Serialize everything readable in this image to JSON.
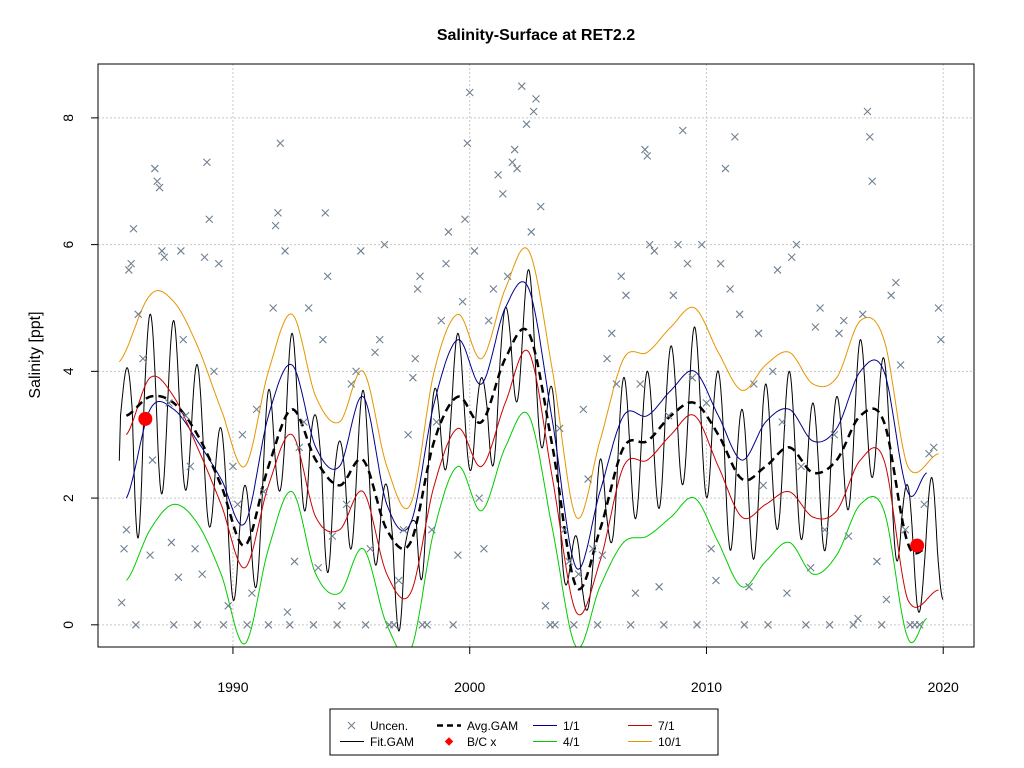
{
  "chart_data": {
    "type": "scatter",
    "title": "Salinity-Surface at RET2.2",
    "xlabel": "",
    "ylabel": "Salinity [ppt]",
    "xlim": [
      1984.3,
      2021.3
    ],
    "ylim": [
      -0.35,
      8.85
    ],
    "x_ticks": [
      1990,
      2000,
      2010,
      2020
    ],
    "y_ticks": [
      0,
      2,
      4,
      6,
      8
    ],
    "grid": true,
    "legend_position": "bottom-center",
    "colors": {
      "uncen": "#708090",
      "fit": "#000000",
      "avg": "#000000",
      "bc": "#ff0000",
      "q1": "#00008b",
      "q4": "#00cc00",
      "q7": "#cc0000",
      "q10": "#e69500"
    },
    "legend": [
      {
        "key": "uncen",
        "label": "Uncen."
      },
      {
        "key": "fit",
        "label": "Fit.GAM"
      },
      {
        "key": "avg",
        "label": "Avg.GAM"
      },
      {
        "key": "bc",
        "label": "B/C x"
      },
      {
        "key": "q1",
        "label": "1/1"
      },
      {
        "key": "q4",
        "label": "4/1"
      },
      {
        "key": "q7",
        "label": "7/1"
      },
      {
        "key": "q10",
        "label": "10/1"
      }
    ],
    "bc_points": [
      {
        "x": 1986.3,
        "y": 3.25
      },
      {
        "x": 2018.9,
        "y": 1.25
      }
    ],
    "series": [
      {
        "key": "avg",
        "x": [
          1985.5,
          1986.5,
          1987.5,
          1988.5,
          1989.5,
          1990.5,
          1991.5,
          1992.5,
          1993.5,
          1994.5,
          1995.5,
          1996.5,
          1997.5,
          1998.5,
          1999.5,
          2000.5,
          2001.5,
          2002.5,
          2003.5,
          2004.5,
          2005.5,
          2006.5,
          2007.5,
          2008.5,
          2009.5,
          2010.5,
          2011.5,
          2012.5,
          2013.5,
          2014.5,
          2015.5,
          2016.5,
          2017.5,
          2018.5,
          2019.3
        ],
        "y": [
          3.3,
          3.6,
          3.5,
          3.0,
          2.2,
          1.25,
          2.5,
          3.4,
          2.6,
          2.2,
          2.6,
          1.5,
          1.3,
          2.9,
          3.6,
          3.2,
          4.2,
          4.6,
          2.8,
          0.6,
          1.5,
          2.8,
          2.9,
          3.3,
          3.5,
          3.0,
          2.3,
          2.5,
          2.8,
          2.4,
          2.6,
          3.3,
          3.2,
          1.3,
          1.2
        ]
      },
      {
        "key": "q1",
        "x": [
          1985.5,
          1986.5,
          1987.5,
          1988.5,
          1989.5,
          1990.5,
          1991.5,
          1992.5,
          1993.5,
          1994.5,
          1995.5,
          1996.5,
          1997.5,
          1998.5,
          1999.5,
          2000.5,
          2001.5,
          2002.5,
          2003.5,
          2004.5,
          2005.5,
          2006.5,
          2007.5,
          2008.5,
          2009.5,
          2010.5,
          2011.5,
          2012.5,
          2013.5,
          2014.5,
          2015.5,
          2016.5,
          2017.5,
          2018.5,
          2019.3
        ],
        "y": [
          2.0,
          3.4,
          3.4,
          2.9,
          2.3,
          1.6,
          3.3,
          4.1,
          2.8,
          2.5,
          3.6,
          1.9,
          1.6,
          3.5,
          4.5,
          3.8,
          5.0,
          5.3,
          3.2,
          0.9,
          2.1,
          3.3,
          3.3,
          3.7,
          4.0,
          3.3,
          2.6,
          3.2,
          3.4,
          2.9,
          3.1,
          4.0,
          4.0,
          2.1,
          2.4
        ]
      },
      {
        "key": "q4",
        "x": [
          1985.5,
          1986.5,
          1987.5,
          1988.5,
          1989.5,
          1990.5,
          1991.5,
          1992.5,
          1993.5,
          1994.5,
          1995.5,
          1996.5,
          1997.5,
          1998.5,
          1999.5,
          2000.5,
          2001.5,
          2002.5,
          2003.5,
          2004.5,
          2005.5,
          2006.5,
          2007.5,
          2008.5,
          2009.5,
          2010.5,
          2011.5,
          2012.5,
          2013.5,
          2014.5,
          2015.5,
          2016.5,
          2017.5,
          2018.5,
          2019.3
        ],
        "y": [
          0.7,
          1.5,
          1.9,
          1.6,
          0.8,
          -0.3,
          1.2,
          2.1,
          0.8,
          0.5,
          1.2,
          0.0,
          -0.4,
          1.5,
          2.5,
          1.8,
          2.8,
          3.3,
          1.5,
          -0.35,
          0.6,
          1.3,
          1.4,
          1.7,
          2.0,
          1.3,
          0.6,
          1.0,
          1.3,
          0.8,
          1.1,
          1.9,
          1.8,
          -0.2,
          0.1
        ]
      },
      {
        "key": "q7",
        "x": [
          1985.5,
          1986.5,
          1987.5,
          1988.5,
          1989.5,
          1990.5,
          1991.5,
          1992.5,
          1993.5,
          1994.5,
          1995.5,
          1996.5,
          1997.5,
          1998.5,
          1999.5,
          2000.5,
          2001.5,
          2002.5,
          2003.5,
          2004.5,
          2005.5,
          2006.5,
          2007.5,
          2008.5,
          2009.5,
          2010.5,
          2011.5,
          2012.5,
          2013.5,
          2014.5,
          2015.5,
          2016.5,
          2017.5,
          2018.5,
          2019.8
        ],
        "y": [
          3.0,
          3.9,
          3.6,
          2.8,
          1.9,
          0.9,
          2.2,
          3.0,
          1.7,
          1.5,
          2.1,
          0.8,
          0.5,
          2.2,
          3.1,
          2.5,
          3.5,
          4.3,
          2.3,
          0.2,
          1.0,
          2.5,
          2.6,
          3.0,
          3.3,
          2.5,
          1.7,
          1.9,
          2.1,
          1.7,
          1.8,
          2.6,
          2.6,
          0.4,
          0.55
        ]
      },
      {
        "key": "q10",
        "x": [
          1985.2,
          1986.5,
          1987.5,
          1988.5,
          1989.5,
          1990.5,
          1991.5,
          1992.5,
          1993.5,
          1994.5,
          1995.5,
          1996.5,
          1997.5,
          1998.5,
          1999.5,
          2000.5,
          2001.5,
          2002.5,
          2003.5,
          2004.5,
          2005.5,
          2006.5,
          2007.5,
          2008.5,
          2009.5,
          2010.5,
          2011.5,
          2012.5,
          2013.5,
          2014.5,
          2015.5,
          2016.5,
          2017.5,
          2018.5,
          2019.8
        ],
        "y": [
          4.15,
          5.2,
          5.1,
          4.4,
          3.4,
          2.5,
          4.0,
          4.9,
          3.6,
          3.2,
          4.0,
          2.5,
          1.9,
          4.0,
          4.9,
          4.2,
          5.3,
          5.9,
          4.0,
          1.7,
          2.9,
          4.2,
          4.3,
          4.7,
          5.0,
          4.3,
          3.7,
          4.1,
          4.3,
          3.8,
          3.9,
          4.8,
          4.5,
          2.5,
          2.7
        ]
      }
    ],
    "fit_gam": {
      "key": "fit",
      "x_start": 1985.2,
      "x_end": 2020.0,
      "note": "seasonal oscillation between 4/1-ish lows and 10/1-ish highs around Avg.GAM"
    },
    "uncen_points": [
      [
        1985.3,
        0.35
      ],
      [
        1985.4,
        1.2
      ],
      [
        1985.5,
        1.5
      ],
      [
        1985.6,
        5.6
      ],
      [
        1985.7,
        5.7
      ],
      [
        1985.8,
        6.25
      ],
      [
        1985.9,
        0
      ],
      [
        1986.0,
        4.9
      ],
      [
        1986.2,
        4.2
      ],
      [
        1986.5,
        1.1
      ],
      [
        1986.6,
        2.6
      ],
      [
        1986.7,
        7.2
      ],
      [
        1986.8,
        7.0
      ],
      [
        1986.9,
        6.9
      ],
      [
        1987.0,
        5.9
      ],
      [
        1987.1,
        5.8
      ],
      [
        1987.3,
        3.5
      ],
      [
        1987.4,
        1.3
      ],
      [
        1987.5,
        0
      ],
      [
        1987.7,
        0.75
      ],
      [
        1987.8,
        5.9
      ],
      [
        1987.9,
        4.5
      ],
      [
        1988.0,
        3.3
      ],
      [
        1988.2,
        2.5
      ],
      [
        1988.4,
        1.2
      ],
      [
        1988.5,
        0
      ],
      [
        1988.7,
        0.8
      ],
      [
        1988.8,
        5.8
      ],
      [
        1988.9,
        7.3
      ],
      [
        1989.0,
        6.4
      ],
      [
        1989.2,
        4.0
      ],
      [
        1989.4,
        5.7
      ],
      [
        1989.6,
        0
      ],
      [
        1989.8,
        0.3
      ],
      [
        1990.0,
        2.5
      ],
      [
        1990.2,
        1.9
      ],
      [
        1990.4,
        3.0
      ],
      [
        1990.6,
        0
      ],
      [
        1990.8,
        0.5
      ],
      [
        1991.0,
        3.4
      ],
      [
        1991.3,
        2.1
      ],
      [
        1991.5,
        0
      ],
      [
        1991.7,
        5.0
      ],
      [
        1991.8,
        6.3
      ],
      [
        1991.9,
        6.5
      ],
      [
        1992.0,
        7.6
      ],
      [
        1992.2,
        5.9
      ],
      [
        1992.3,
        0.2
      ],
      [
        1992.4,
        0
      ],
      [
        1992.6,
        1.0
      ],
      [
        1992.8,
        2.8
      ],
      [
        1993.0,
        3.2
      ],
      [
        1993.2,
        5.0
      ],
      [
        1993.4,
        0
      ],
      [
        1993.6,
        0.9
      ],
      [
        1993.8,
        4.5
      ],
      [
        1993.9,
        6.5
      ],
      [
        1994.0,
        5.5
      ],
      [
        1994.2,
        1.4
      ],
      [
        1994.4,
        0
      ],
      [
        1994.6,
        0.3
      ],
      [
        1994.8,
        1.9
      ],
      [
        1995.0,
        3.8
      ],
      [
        1995.2,
        4.0
      ],
      [
        1995.4,
        5.9
      ],
      [
        1995.6,
        0
      ],
      [
        1995.8,
        1.2
      ],
      [
        1996.0,
        4.3
      ],
      [
        1996.2,
        4.5
      ],
      [
        1996.4,
        6.0
      ],
      [
        1996.6,
        0
      ],
      [
        1996.8,
        0
      ],
      [
        1997.0,
        0.7
      ],
      [
        1997.2,
        1.5
      ],
      [
        1997.4,
        3.0
      ],
      [
        1997.6,
        3.9
      ],
      [
        1997.7,
        4.2
      ],
      [
        1997.8,
        5.3
      ],
      [
        1997.9,
        5.5
      ],
      [
        1998.0,
        0
      ],
      [
        1998.2,
        0
      ],
      [
        1998.4,
        1.5
      ],
      [
        1998.6,
        3.2
      ],
      [
        1998.8,
        4.8
      ],
      [
        1999.0,
        5.7
      ],
      [
        1999.1,
        6.2
      ],
      [
        1999.3,
        0
      ],
      [
        1999.5,
        1.1
      ],
      [
        1999.7,
        5.1
      ],
      [
        1999.8,
        6.4
      ],
      [
        1999.9,
        7.6
      ],
      [
        2000.0,
        8.4
      ],
      [
        2000.2,
        5.9
      ],
      [
        2000.4,
        2.0
      ],
      [
        2000.6,
        1.2
      ],
      [
        2000.8,
        4.8
      ],
      [
        2001.0,
        5.3
      ],
      [
        2001.2,
        7.1
      ],
      [
        2001.4,
        6.8
      ],
      [
        2001.6,
        5.5
      ],
      [
        2001.8,
        7.3
      ],
      [
        2001.9,
        7.5
      ],
      [
        2002.0,
        7.2
      ],
      [
        2002.2,
        8.5
      ],
      [
        2002.4,
        7.9
      ],
      [
        2002.6,
        6.2
      ],
      [
        2002.7,
        8.1
      ],
      [
        2002.8,
        8.3
      ],
      [
        2003.0,
        6.6
      ],
      [
        2003.2,
        0.3
      ],
      [
        2003.4,
        0
      ],
      [
        2003.6,
        0
      ],
      [
        2003.8,
        3.1
      ],
      [
        2004.0,
        1.5
      ],
      [
        2004.2,
        1.0
      ],
      [
        2004.4,
        0
      ],
      [
        2004.6,
        0.8
      ],
      [
        2004.8,
        3.4
      ],
      [
        2005.0,
        2.3
      ],
      [
        2005.2,
        1.2
      ],
      [
        2005.4,
        0
      ],
      [
        2005.6,
        1.1
      ],
      [
        2005.8,
        4.2
      ],
      [
        2006.0,
        4.6
      ],
      [
        2006.2,
        3.8
      ],
      [
        2006.4,
        5.5
      ],
      [
        2006.6,
        5.2
      ],
      [
        2006.8,
        0
      ],
      [
        2007.0,
        0.5
      ],
      [
        2007.2,
        3.8
      ],
      [
        2007.4,
        7.5
      ],
      [
        2007.5,
        7.4
      ],
      [
        2007.6,
        6.0
      ],
      [
        2007.8,
        5.9
      ],
      [
        2008.0,
        0.6
      ],
      [
        2008.2,
        0
      ],
      [
        2008.4,
        3.3
      ],
      [
        2008.6,
        5.2
      ],
      [
        2008.8,
        6.0
      ],
      [
        2009.0,
        7.8
      ],
      [
        2009.2,
        5.7
      ],
      [
        2009.4,
        3.9
      ],
      [
        2009.6,
        0
      ],
      [
        2009.8,
        6.0
      ],
      [
        2010.0,
        3.5
      ],
      [
        2010.2,
        1.2
      ],
      [
        2010.4,
        0.7
      ],
      [
        2010.6,
        5.7
      ],
      [
        2010.8,
        7.2
      ],
      [
        2011.0,
        5.3
      ],
      [
        2011.2,
        7.7
      ],
      [
        2011.4,
        4.9
      ],
      [
        2011.6,
        0
      ],
      [
        2011.8,
        0.6
      ],
      [
        2012.0,
        3.8
      ],
      [
        2012.2,
        4.6
      ],
      [
        2012.4,
        2.2
      ],
      [
        2012.6,
        0
      ],
      [
        2012.8,
        4.0
      ],
      [
        2013.0,
        5.6
      ],
      [
        2013.2,
        3.2
      ],
      [
        2013.4,
        0.5
      ],
      [
        2013.6,
        5.8
      ],
      [
        2013.8,
        6.0
      ],
      [
        2014.0,
        2.5
      ],
      [
        2014.2,
        0
      ],
      [
        2014.4,
        0.9
      ],
      [
        2014.6,
        4.7
      ],
      [
        2014.8,
        5.0
      ],
      [
        2015.0,
        1.5
      ],
      [
        2015.2,
        0
      ],
      [
        2015.4,
        3.0
      ],
      [
        2015.6,
        4.6
      ],
      [
        2015.8,
        4.8
      ],
      [
        2016.0,
        1.4
      ],
      [
        2016.2,
        0
      ],
      [
        2016.4,
        0.1
      ],
      [
        2016.6,
        4.9
      ],
      [
        2016.8,
        8.1
      ],
      [
        2016.9,
        7.7
      ],
      [
        2017.0,
        7.0
      ],
      [
        2017.2,
        1.0
      ],
      [
        2017.4,
        0
      ],
      [
        2017.6,
        0.4
      ],
      [
        2017.8,
        5.2
      ],
      [
        2018.0,
        5.4
      ],
      [
        2018.2,
        4.1
      ],
      [
        2018.4,
        1.5
      ],
      [
        2018.6,
        0
      ],
      [
        2018.8,
        0
      ],
      [
        2019.0,
        0
      ],
      [
        2019.2,
        1.9
      ],
      [
        2019.4,
        2.7
      ],
      [
        2019.6,
        2.8
      ],
      [
        2019.8,
        5.0
      ],
      [
        2019.9,
        4.5
      ]
    ]
  }
}
